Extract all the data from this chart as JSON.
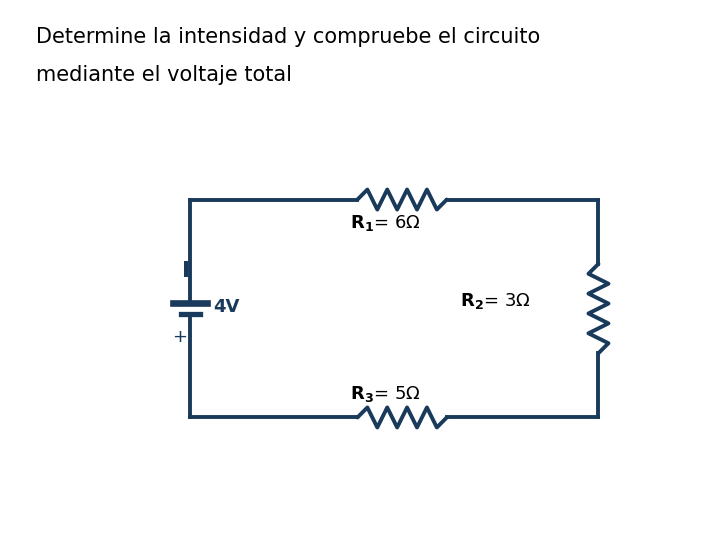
{
  "title_line1": "Determine la intensidad y compruebe el circuito",
  "title_line2": "mediante el voltaje total",
  "title_fontsize": 15,
  "bg_color": "#ffffff",
  "circuit_color": "#1a3a5c",
  "circuit_lw": 2.8,
  "R1_text": "$\\mathbf{R_{1}}$= 6Ω",
  "R2_text": "$\\mathbf{R_{2}}$= 3Ω",
  "R3_text": "$\\mathbf{R_{3}}$= 5Ω",
  "bat_label": "4V",
  "bat_I": "I",
  "bat_plus": "+",
  "label_fontsize": 13
}
